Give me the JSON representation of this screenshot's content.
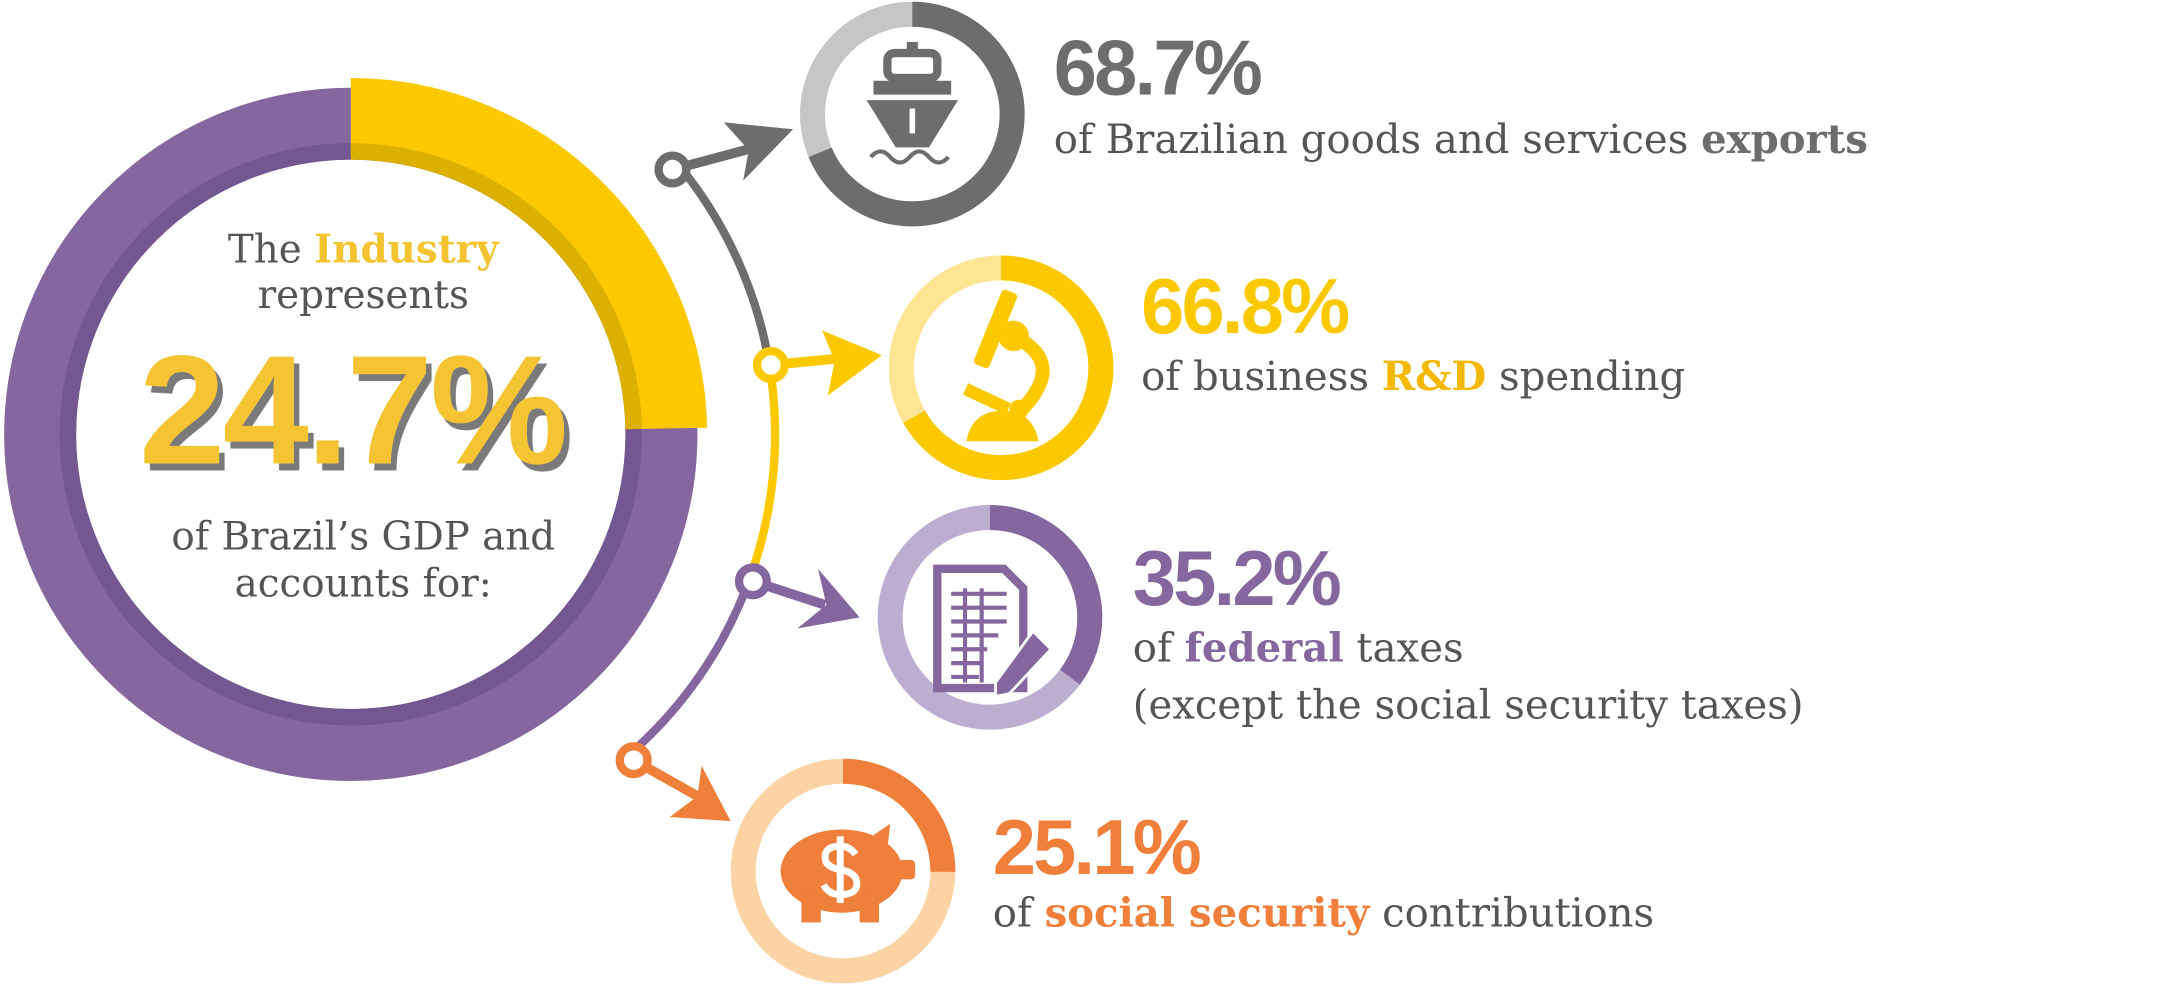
{
  "colors": {
    "purple": "#83679e",
    "purple_dark": "#725791",
    "purple_light": "#bcaed0",
    "yellow": "#fcc900",
    "yellow_dark": "#dcb000",
    "yellow_light": "#fde594",
    "yellow_text": "#f4c430",
    "gray": "#6d6d6d",
    "gray_light": "#c6c6c6",
    "orange": "#ef7f3a",
    "orange_light": "#fcd3a4",
    "text": "#555555"
  },
  "center": {
    "line1_pre": "The ",
    "line1_bold": "Industry",
    "line2": "represents",
    "value_label": "24.7%",
    "value": 24.7,
    "line3": "of Brazil’s GDP and",
    "line4": "accounts for:"
  },
  "items": [
    {
      "value_label": "68.7%",
      "value": 68.7,
      "icon": "ship-icon",
      "text_pre": "of Brazilian goods and services ",
      "text_bold": "exports",
      "text_post": "",
      "text_line2": ""
    },
    {
      "value_label": "66.8%",
      "value": 66.8,
      "icon": "microscope-icon",
      "text_pre": "of business ",
      "text_bold": "R&D",
      "text_post": " spending",
      "text_line2": ""
    },
    {
      "value_label": "35.2%",
      "value": 35.2,
      "icon": "tax-document-icon",
      "text_pre": "of ",
      "text_bold": "federal",
      "text_post": " taxes",
      "text_line2": "(except the social security taxes)"
    },
    {
      "value_label": "25.1%",
      "value": 25.1,
      "icon": "piggy-bank-icon",
      "text_pre": "of ",
      "text_bold": "social security",
      "text_post": " contributions",
      "text_line2": ""
    }
  ]
}
